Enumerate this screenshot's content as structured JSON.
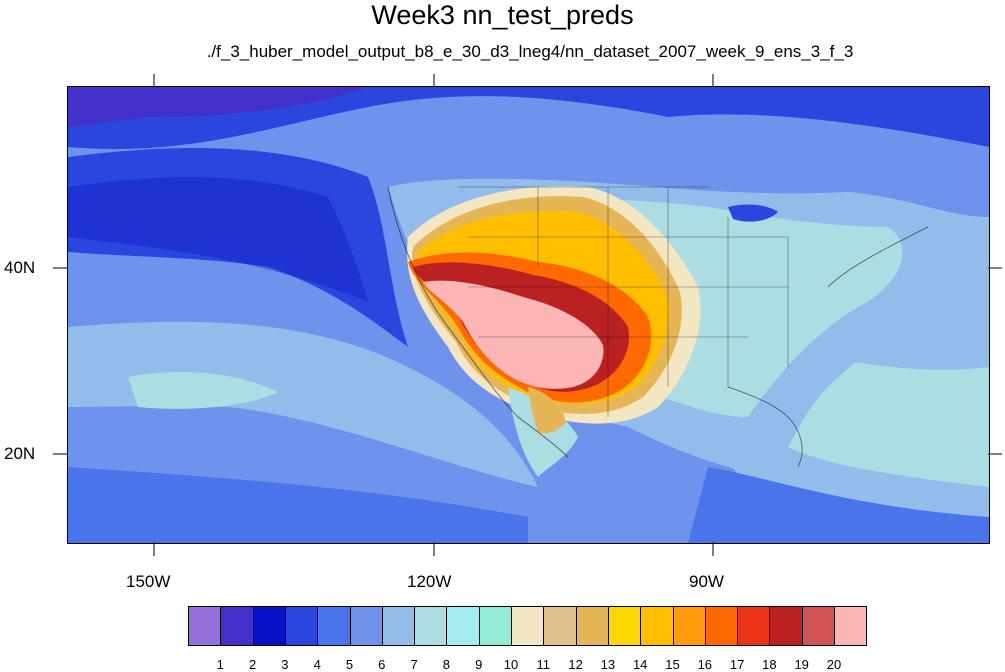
{
  "title": "Week3 nn_test_preds",
  "subtitle": "./f_3_huber_model_output_b8_e_30_d3_lneg4/nn_dataset_2007_week_9_ens_3_f_3",
  "axes": {
    "lon_labels": [
      "150W",
      "120W",
      "90W"
    ],
    "lat_labels": [
      "40N",
      "20N"
    ]
  },
  "colorbar": {
    "labels": [
      "1",
      "2",
      "3",
      "4",
      "5",
      "6",
      "7",
      "8",
      "9",
      "10",
      "11",
      "12",
      "13",
      "14",
      "15",
      "16",
      "17",
      "18",
      "19",
      "20"
    ],
    "colors": [
      "#9370db",
      "#4330c8",
      "#0a10c6",
      "#2b46de",
      "#4a74e9",
      "#6f92ec",
      "#94bcea",
      "#acdde3",
      "#a5ecf2",
      "#95ecd6",
      "#f3e6c2",
      "#e0c08c",
      "#e6b656",
      "#ffd700",
      "#ffbf00",
      "#ff9b0d",
      "#ff6a00",
      "#ea3317",
      "#b92123",
      "#d25353",
      "#fdb6b6"
    ]
  },
  "palette": {
    "ocean_deep": "#2b46de",
    "ocean_mid": "#4a74e9",
    "ocean_light": "#6f92ec",
    "land_light": "#94bcea",
    "land_cyan": "#acdde3",
    "hot_core": "#fdb6b6"
  }
}
